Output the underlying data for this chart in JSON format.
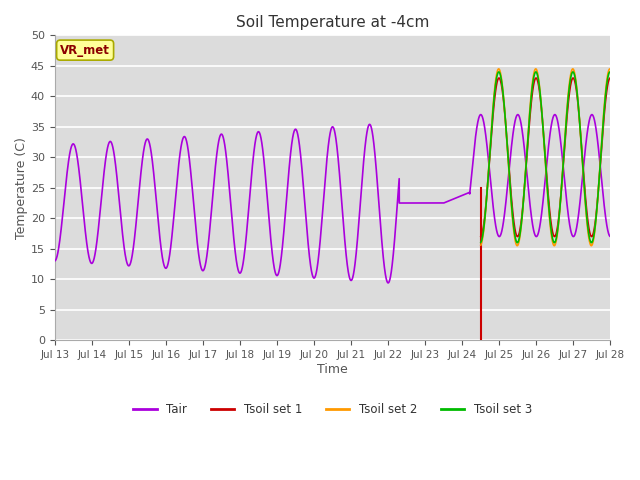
{
  "title": "Soil Temperature at -4cm",
  "xlabel": "Time",
  "ylabel": "Temperature (C)",
  "ylim": [
    0,
    50
  ],
  "background_color": "#dcdcdc",
  "grid_color": "#ffffff",
  "annotation_label": "VR_met",
  "annotation_box_color": "#ffff99",
  "annotation_text_color": "#8b0000",
  "colors": {
    "Tair": "#aa00dd",
    "Tsoil1": "#cc0000",
    "Tsoil2": "#ff9900",
    "Tsoil3": "#00bb00"
  },
  "legend_labels": [
    "Tair",
    "Tsoil set 1",
    "Tsoil set 2",
    "Tsoil set 3"
  ],
  "tick_labels": [
    "Jul 13",
    "Jul 14",
    "Jul 15",
    "Jul 16",
    "Jul 17",
    "Jul 18",
    "Jul 19",
    "Jul 20",
    "Jul 21",
    "Jul 22",
    "Jul 23",
    "Jul 24",
    "Jul 25",
    "Jul 26",
    "Jul 27",
    "Jul 28"
  ],
  "yticks": [
    0,
    5,
    10,
    15,
    20,
    25,
    30,
    35,
    40,
    45,
    50
  ]
}
